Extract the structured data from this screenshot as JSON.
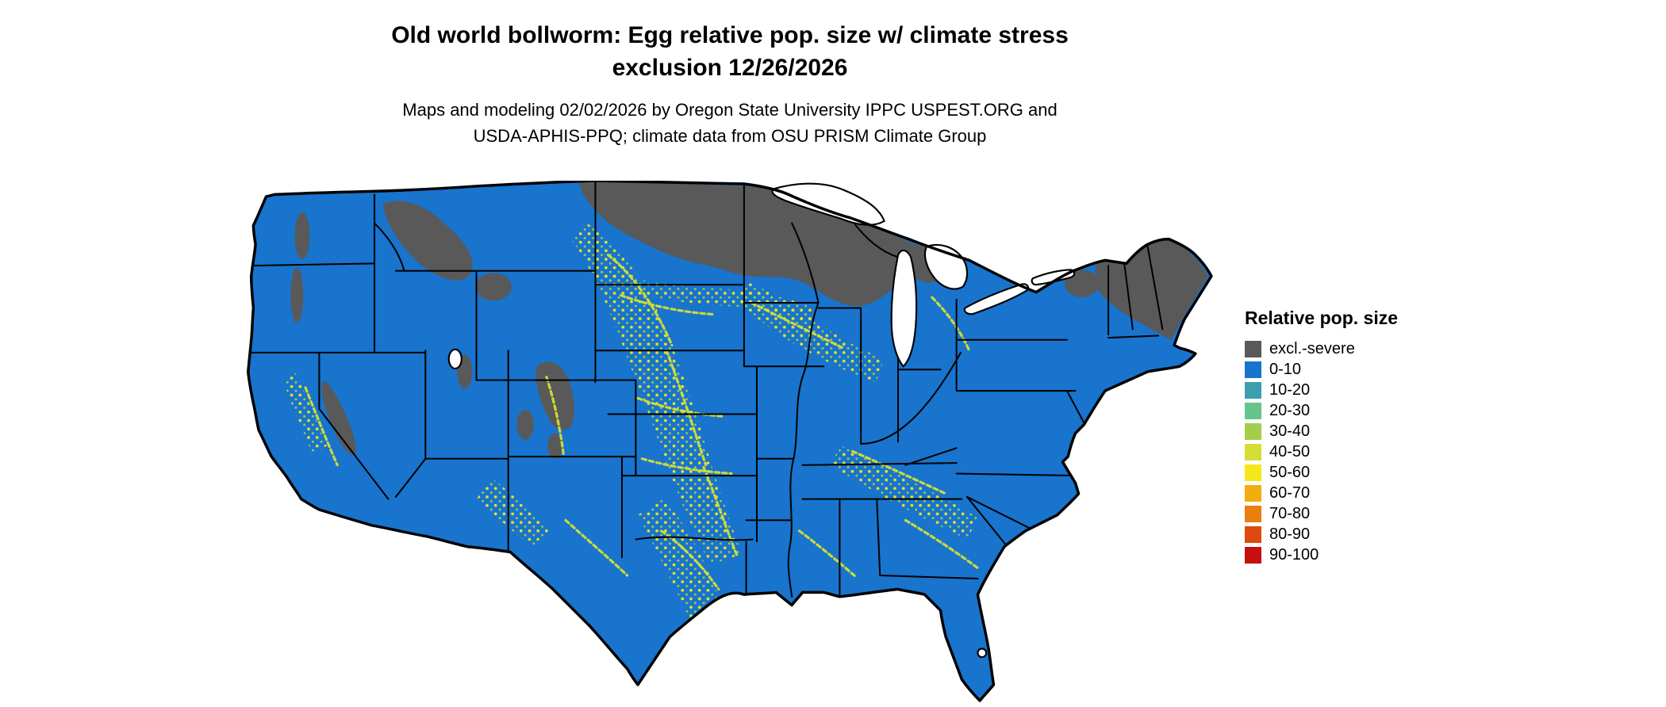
{
  "title": {
    "line1": "Old world bollworm: Egg relative pop. size w/ climate stress",
    "line2": "exclusion 12/26/2026"
  },
  "subtitle": {
    "line1": "Maps and modeling 02/02/2026 by Oregon State University IPPC USPEST.ORG and",
    "line2": "USDA-APHIS-PPQ; climate data from OSU PRISM Climate Group"
  },
  "legend": {
    "title": "Relative pop. size",
    "items": [
      {
        "label": "excl.-severe",
        "color": "#595959"
      },
      {
        "label": "0-10",
        "color": "#1874CD"
      },
      {
        "label": "10-20",
        "color": "#3D9EB0"
      },
      {
        "label": "20-30",
        "color": "#66C48C"
      },
      {
        "label": "30-40",
        "color": "#A2CE4C"
      },
      {
        "label": "40-50",
        "color": "#D4DE35"
      },
      {
        "label": "50-60",
        "color": "#F6E718"
      },
      {
        "label": "60-70",
        "color": "#F2AE0F"
      },
      {
        "label": "70-80",
        "color": "#EA7E10"
      },
      {
        "label": "80-90",
        "color": "#DE4A0E"
      },
      {
        "label": "90-100",
        "color": "#C80F0F"
      }
    ]
  },
  "map": {
    "region": "Contiguous United States",
    "base_category": "0-10",
    "excluded_category": "excl.-severe",
    "speckle_categories": [
      "30-40",
      "40-50",
      "50-60"
    ]
  }
}
